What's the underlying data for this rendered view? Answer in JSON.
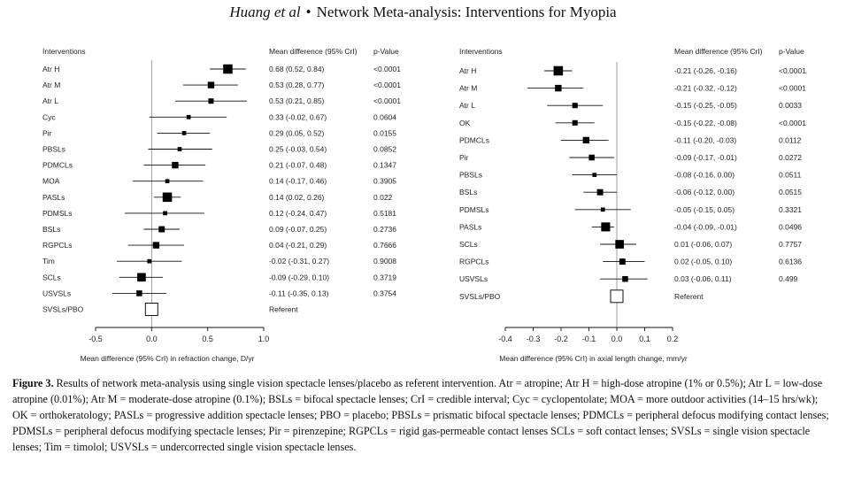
{
  "header": {
    "authors": "Huang et al",
    "separator": "•",
    "title": "Network Meta-analysis: Interventions for Myopia"
  },
  "chart_data": [
    {
      "type": "forest",
      "col_interventions": "Interventions",
      "col_md": "Mean difference (95% CrI)",
      "col_p": "p-Value",
      "xlabel": "Mean difference (95% CrI) in refraction change, D/yr",
      "xlim": [
        -0.5,
        1.0
      ],
      "xticks": [
        -0.5,
        0.0,
        0.5,
        1.0
      ],
      "tick_labels": [
        "-0.5",
        "0.0",
        "0.5",
        "1.0"
      ],
      "rows": [
        {
          "name": "Atr H",
          "md": 0.68,
          "lo": 0.52,
          "hi": 0.84,
          "ci": "0.68 (0.52, 0.84)",
          "p": "<0.0001",
          "w": 0.95
        },
        {
          "name": "Atr M",
          "md": 0.53,
          "lo": 0.28,
          "hi": 0.77,
          "ci": "0.53 (0.28, 0.77)",
          "p": "<0.0001",
          "w": 0.6
        },
        {
          "name": "Atr L",
          "md": 0.53,
          "lo": 0.21,
          "hi": 0.85,
          "ci": "0.53 (0.21, 0.85)",
          "p": "<0.0001",
          "w": 0.45
        },
        {
          "name": "Cyc",
          "md": 0.33,
          "lo": -0.02,
          "hi": 0.67,
          "ci": "0.33 (-0.02, 0.67)",
          "p": "0.0604",
          "w": 0.3
        },
        {
          "name": "Pir",
          "md": 0.29,
          "lo": 0.05,
          "hi": 0.52,
          "ci": "0.29 (0.05, 0.52)",
          "p": "0.0155",
          "w": 0.3
        },
        {
          "name": "PBSLs",
          "md": 0.25,
          "lo": -0.03,
          "hi": 0.54,
          "ci": "0.25 (-0.03, 0.54)",
          "p": "0.0852",
          "w": 0.3
        },
        {
          "name": "PDMCLs",
          "md": 0.21,
          "lo": -0.07,
          "hi": 0.48,
          "ci": "0.21 (-0.07, 0.48)",
          "p": "0.1347",
          "w": 0.6
        },
        {
          "name": "MOA",
          "md": 0.14,
          "lo": -0.17,
          "hi": 0.46,
          "ci": "0.14 (-0.17, 0.46)",
          "p": "0.3905",
          "w": 0.3
        },
        {
          "name": "PASLs",
          "md": 0.14,
          "lo": 0.02,
          "hi": 0.26,
          "ci": "0.14 (0.02, 0.26)",
          "p": "0.022",
          "w": 0.95
        },
        {
          "name": "PDMSLs",
          "md": 0.12,
          "lo": -0.24,
          "hi": 0.47,
          "ci": "0.12 (-0.24, 0.47)",
          "p": "0.5181",
          "w": 0.3
        },
        {
          "name": "BSLs",
          "md": 0.09,
          "lo": -0.07,
          "hi": 0.25,
          "ci": "0.09 (-0.07, 0.25)",
          "p": "0.2736",
          "w": 0.55
        },
        {
          "name": "RGPCLs",
          "md": 0.04,
          "lo": -0.21,
          "hi": 0.29,
          "ci": "0.04 (-0.21, 0.29)",
          "p": "0.7666",
          "w": 0.6
        },
        {
          "name": "Tim",
          "md": -0.02,
          "lo": -0.31,
          "hi": 0.27,
          "ci": "-0.02 (-0.31, 0.27)",
          "p": "0.9008",
          "w": 0.3
        },
        {
          "name": "SCLs",
          "md": -0.09,
          "lo": -0.29,
          "hi": 0.1,
          "ci": "-0.09 (-0.29, 0.10)",
          "p": "0.3719",
          "w": 0.85
        },
        {
          "name": "USVSLs",
          "md": -0.11,
          "lo": -0.35,
          "hi": 0.13,
          "ci": "-0.11 (-0.35, 0.13)",
          "p": "0.3754",
          "w": 0.5
        }
      ],
      "referent": {
        "name": "SVSLs/PBO",
        "md": 0,
        "label": "Referent"
      }
    },
    {
      "type": "forest",
      "col_interventions": "Interventions",
      "col_md": "Mean difference (95% CrI)",
      "col_p": "p-Value",
      "xlabel": "Mean difference (95% CrI) in axial length change, mm/yr",
      "xlim": [
        -0.4,
        0.2
      ],
      "xticks": [
        -0.4,
        -0.3,
        -0.2,
        -0.1,
        0.0,
        0.1,
        0.2
      ],
      "tick_labels": [
        "-0.4",
        "-0.3",
        "-0.2",
        "-0.1",
        "0.0",
        "0.1",
        "0.2"
      ],
      "rows": [
        {
          "name": "Atr H",
          "md": -0.21,
          "lo": -0.26,
          "hi": -0.16,
          "ci": "-0.21 (-0.26, -0.16)",
          "p": "<0.0001",
          "w": 0.95
        },
        {
          "name": "Atr M",
          "md": -0.21,
          "lo": -0.32,
          "hi": -0.12,
          "ci": "-0.21 (-0.32, -0.12)",
          "p": "<0.0001",
          "w": 0.6
        },
        {
          "name": "Atr L",
          "md": -0.15,
          "lo": -0.25,
          "hi": -0.05,
          "ci": "-0.15 (-0.25, -0.05)",
          "p": "0.0033",
          "w": 0.45
        },
        {
          "name": "OK",
          "md": -0.15,
          "lo": -0.22,
          "hi": -0.08,
          "ci": "-0.15 (-0.22, -0.08)",
          "p": "<0.0001",
          "w": 0.45
        },
        {
          "name": "PDMCLs",
          "md": -0.11,
          "lo": -0.2,
          "hi": -0.03,
          "ci": "-0.11 (-0.20, -0.03)",
          "p": "0.0112",
          "w": 0.6
        },
        {
          "name": "Pir",
          "md": -0.09,
          "lo": -0.17,
          "hi": -0.01,
          "ci": "-0.09 (-0.17, -0.01)",
          "p": "0.0272",
          "w": 0.5
        },
        {
          "name": "PBSLs",
          "md": -0.08,
          "lo": -0.16,
          "hi": 0.0,
          "ci": "-0.08 (-0.16, 0.00)",
          "p": "0.0511",
          "w": 0.3
        },
        {
          "name": "BSLs",
          "md": -0.06,
          "lo": -0.12,
          "hi": 0.0,
          "ci": "-0.06 (-0.12, 0.00)",
          "p": "0.0515",
          "w": 0.55
        },
        {
          "name": "PDMSLs",
          "md": -0.05,
          "lo": -0.15,
          "hi": 0.05,
          "ci": "-0.05 (-0.15, 0.05)",
          "p": "0.3321",
          "w": 0.3
        },
        {
          "name": "PASLs",
          "md": -0.04,
          "lo": -0.09,
          "hi": -0.01,
          "ci": "-0.04 (-0.09, -0.01)",
          "p": "0.0496",
          "w": 0.9
        },
        {
          "name": "SCLs",
          "md": 0.01,
          "lo": -0.06,
          "hi": 0.07,
          "ci": "0.01 (-0.06, 0.07)",
          "p": "0.7757",
          "w": 0.85
        },
        {
          "name": "RGPCLs",
          "md": 0.02,
          "lo": -0.05,
          "hi": 0.1,
          "ci": "0.02 (-0.05, 0.10)",
          "p": "0.6136",
          "w": 0.55
        },
        {
          "name": "USVSLs",
          "md": 0.03,
          "lo": -0.06,
          "hi": 0.11,
          "ci": "0.03 (-0.06, 0.11)",
          "p": "0.499",
          "w": 0.5
        }
      ],
      "referent": {
        "name": "SVSLs/PBO",
        "md": 0,
        "label": "Referent"
      }
    }
  ],
  "caption": {
    "label": "Figure 3.",
    "text": " Results of network meta-analysis using single vision spectacle lenses/placebo as referent intervention. Atr = atropine; Atr H = high-dose atropine (1% or 0.5%); Atr L = low-dose atropine (0.01%); Atr M = moderate-dose atropine (0.1%); BSLs = bifocal spectacle lenses; CrI = credible interval; Cyc = cyclopentolate; MOA = more outdoor activities (14–15 hrs/wk); OK = orthokeratology; PASLs = progressive addition spectacle lenses; PBO = placebo; PBSLs = prismatic bifocal spectacle lenses; PDMCLs = peripheral defocus modifying contact lenses; PDMSLs = peripheral defocus modifying spectacle lenses; Pir = pirenzepine; RGPCLs = rigid gas-permeable contact lenses SCLs = soft contact lenses; SVSLs = single vision spectacle lenses; Tim = timolol; USVSLs = undercorrected single vision spectacle lenses."
  }
}
